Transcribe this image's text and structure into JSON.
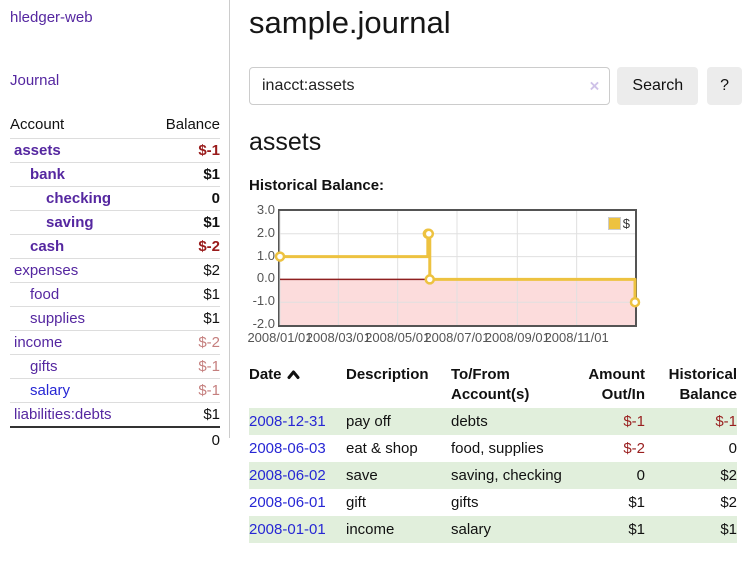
{
  "app": {
    "title": "hledger-web"
  },
  "sidebar": {
    "journal_link": "Journal",
    "accounts": {
      "headers": {
        "account": "Account",
        "balance": "Balance"
      },
      "rows": [
        {
          "name": "assets",
          "depth": 0,
          "emph": true,
          "balance": "$-1",
          "tone": "neg-strong",
          "link": "purple"
        },
        {
          "name": "bank",
          "depth": 1,
          "emph": true,
          "balance": "$1",
          "tone": "",
          "link": "purple"
        },
        {
          "name": "checking",
          "depth": 2,
          "emph": true,
          "balance": "0",
          "tone": "",
          "link": "purple"
        },
        {
          "name": "saving",
          "depth": 2,
          "emph": true,
          "balance": "$1",
          "tone": "",
          "link": "purple"
        },
        {
          "name": "cash",
          "depth": 1,
          "emph": true,
          "balance": "$-2",
          "tone": "neg-strong",
          "link": "purple"
        },
        {
          "name": "expenses",
          "depth": 0,
          "emph": false,
          "balance": "$2",
          "tone": "",
          "link": "purple"
        },
        {
          "name": "food",
          "depth": 1,
          "emph": false,
          "balance": "$1",
          "tone": "",
          "link": "purple"
        },
        {
          "name": "supplies",
          "depth": 1,
          "emph": false,
          "balance": "$1",
          "tone": "",
          "link": "purple"
        },
        {
          "name": "income",
          "depth": 0,
          "emph": false,
          "balance": "$-2",
          "tone": "neg-soft",
          "link": "purple"
        },
        {
          "name": "gifts",
          "depth": 1,
          "emph": false,
          "balance": "$-1",
          "tone": "neg-soft",
          "link": "purple"
        },
        {
          "name": "salary",
          "depth": 1,
          "emph": false,
          "balance": "$-1",
          "tone": "neg-soft",
          "link": "blue"
        },
        {
          "name": "liabilities:debts",
          "depth": 0,
          "emph": false,
          "balance": "$1",
          "tone": "",
          "link": "purple",
          "last": true
        }
      ],
      "total": "0"
    }
  },
  "main": {
    "title": "sample.journal",
    "search": {
      "value": "inacct:assets",
      "clear_label": "×",
      "button_label": "Search",
      "help_label": "?"
    },
    "account_heading": "assets",
    "chart_label": "Historical Balance:"
  },
  "chart_data": {
    "type": "line",
    "step": true,
    "title": "Historical Balance:",
    "series": [
      {
        "name": "$",
        "color": "#edc240",
        "points": [
          {
            "x": "2008-01-01",
            "y": 1
          },
          {
            "x": "2008-06-01",
            "y": 2
          },
          {
            "x": "2008-06-02",
            "y": 2
          },
          {
            "x": "2008-06-03",
            "y": 0
          },
          {
            "x": "2008-12-31",
            "y": -1
          }
        ]
      }
    ],
    "x_ticks": [
      "2008/01/01",
      "2008/03/01",
      "2008/05/01",
      "2008/07/01",
      "2008/09/01",
      "2008/11/01"
    ],
    "y_ticks": [
      3.0,
      2.0,
      1.0,
      0.0,
      -1.0,
      -2.0
    ],
    "xlim": [
      "2008-01-01",
      "2008-12-31"
    ],
    "ylim": [
      -2,
      3
    ],
    "grid": true,
    "grid_color": "#e0e0e0",
    "negative_region_color": "#fcdcdc",
    "zero_line_color": "#8f2020",
    "legend_position": "top-right"
  },
  "register": {
    "headers": {
      "date": "Date",
      "sort_icon": "chevron-up",
      "description": "Description",
      "tofrom": [
        "To/From",
        "Account(s)"
      ],
      "amount": [
        "Amount",
        "Out/In"
      ],
      "balance": [
        "Historical",
        "Balance"
      ]
    },
    "rows": [
      {
        "date": "2008-12-31",
        "description": "pay off",
        "accounts": [
          "debts"
        ],
        "amount": "$-1",
        "amount_tone": "neg",
        "balance": "$-1",
        "balance_tone": "neg"
      },
      {
        "date": "2008-06-03",
        "description": "eat & shop",
        "accounts": [
          "food",
          "supplies"
        ],
        "amount": "$-2",
        "amount_tone": "neg",
        "balance": "0",
        "balance_tone": ""
      },
      {
        "date": "2008-06-02",
        "description": "save",
        "accounts": [
          "saving",
          "checking"
        ],
        "amount": "0",
        "amount_tone": "",
        "balance": "$2",
        "balance_tone": ""
      },
      {
        "date": "2008-06-01",
        "description": "gift",
        "accounts": [
          "gifts"
        ],
        "amount": "$1",
        "amount_tone": "",
        "balance": "$2",
        "balance_tone": ""
      },
      {
        "date": "2008-01-01",
        "description": "income",
        "accounts": [
          "salary"
        ],
        "amount": "$1",
        "amount_tone": "",
        "balance": "$1",
        "balance_tone": ""
      }
    ]
  }
}
